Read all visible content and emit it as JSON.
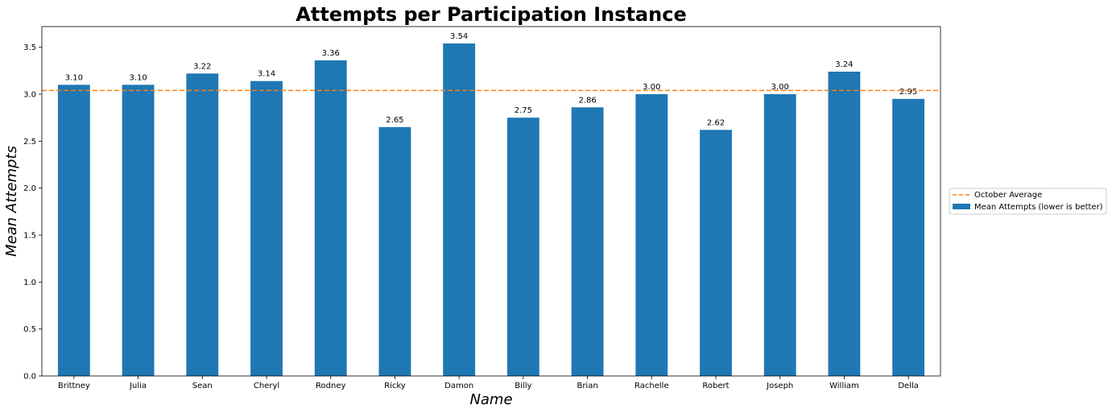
{
  "chart_data": {
    "type": "bar",
    "title": "Attempts per Participation Instance",
    "xlabel": "Name",
    "ylabel": "Mean Attempts",
    "categories": [
      "Brittney",
      "Julia",
      "Sean",
      "Cheryl",
      "Rodney",
      "Ricky",
      "Damon",
      "Billy",
      "Brian",
      "Rachelle",
      "Robert",
      "Joseph",
      "William",
      "Della"
    ],
    "series": [
      {
        "name": "Mean Attempts (lower is better)",
        "values": [
          3.1,
          3.1,
          3.22,
          3.14,
          3.36,
          2.65,
          3.54,
          2.75,
          2.86,
          3.0,
          2.62,
          3.0,
          3.24,
          2.95
        ],
        "data_labels": [
          "3.10",
          "3.10",
          "3.22",
          "3.14",
          "3.36",
          "2.65",
          "3.54",
          "2.75",
          "2.86",
          "3.00",
          "2.62",
          "3.00",
          "3.24",
          "2.95"
        ],
        "color": "#1f77b4"
      }
    ],
    "reference_line": {
      "name": "October Average",
      "value": 3.04,
      "color": "#ff7f0e",
      "style": "dashed"
    },
    "ylim": [
      0,
      3.72
    ],
    "yticks": [
      "0.0",
      "0.5",
      "1.0",
      "1.5",
      "2.0",
      "2.5",
      "3.0",
      "3.5"
    ],
    "grid": false,
    "legend_position": "outside-right"
  }
}
